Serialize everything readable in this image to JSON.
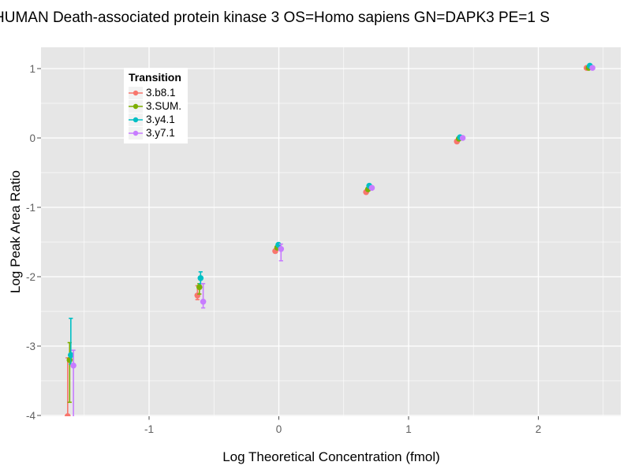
{
  "chart_data": {
    "type": "scatter",
    "title": "HUMAN Death-associated protein kinase 3 OS=Homo sapiens GN=DAPK3 PE=1 S",
    "xlabel": "Log Theoretical Concentration (fmol)",
    "ylabel": "Log Peak Area Ratio",
    "xlim": [
      -1.83,
      2.63
    ],
    "ylim": [
      -4.03,
      1.31
    ],
    "x_ticks": [
      -1,
      0,
      1,
      2
    ],
    "x_tick_labels": [
      "-1",
      "0",
      "1",
      "2"
    ],
    "y_ticks": [
      1,
      0,
      -1,
      -2,
      -3,
      -4
    ],
    "y_tick_labels": [
      "1",
      "0",
      "-1",
      "-2",
      "-3",
      "-4"
    ],
    "x_minor": [
      -1.5,
      -0.5,
      0.5,
      1.5,
      2.5
    ],
    "y_minor": [
      0.5,
      -0.5,
      -1.5,
      -2.5,
      -3.5
    ],
    "grid_on": true,
    "legend": {
      "title": "Transition",
      "position": "inside-top-left",
      "entries": [
        "3.b8.1",
        "3.SUM.",
        "3.y4.1",
        "3.y7.1"
      ]
    },
    "colors": {
      "panel_bg": "#E6E6E6",
      "grid_major": "#FFFFFF",
      "grid_minor": "#FFFFFF",
      "tick_text": "#606060",
      "tick_mark": "#4D4D4D",
      "legend_key_bg": "#F2F2F2"
    },
    "series": [
      {
        "name": "3.b8.1",
        "color": "#F8766D",
        "dodge": -4.5,
        "points": [
          {
            "x": -1.6,
            "y": -4.01,
            "hi": -3.17,
            "lo": -4.06
          },
          {
            "x": -0.6,
            "y": -2.27,
            "hi": -2.13,
            "lo": -2.33
          },
          {
            "x": 0.0,
            "y": -1.63
          },
          {
            "x": 0.7,
            "y": -0.78
          },
          {
            "x": 1.4,
            "y": -0.05
          },
          {
            "x": 2.4,
            "y": 1.01
          }
        ]
      },
      {
        "name": "3.SUM.",
        "color": "#7CAE00",
        "dodge": -2.0,
        "points": [
          {
            "x": -1.6,
            "y": -3.2,
            "hi": -2.95,
            "lo": -3.81
          },
          {
            "x": -0.6,
            "y": -2.15,
            "hi": -2.1,
            "lo": -2.25
          },
          {
            "x": 0.0,
            "y": -1.58
          },
          {
            "x": 0.7,
            "y": -0.74
          },
          {
            "x": 1.4,
            "y": -0.01
          },
          {
            "x": 2.4,
            "y": 1.01
          }
        ]
      },
      {
        "name": "3.y4.1",
        "color": "#00BFC4",
        "dodge": -0.5,
        "points": [
          {
            "x": -1.6,
            "y": -3.13,
            "hi": -2.6,
            "lo": -3.26
          },
          {
            "x": -0.6,
            "y": -2.02,
            "hi": -1.93,
            "lo": -2.1
          },
          {
            "x": 0.0,
            "y": -1.54
          },
          {
            "x": 0.7,
            "y": -0.69
          },
          {
            "x": 1.4,
            "y": 0.01
          },
          {
            "x": 2.4,
            "y": 1.04
          }
        ]
      },
      {
        "name": "3.y7.1",
        "color": "#C77CFF",
        "dodge": 2.8,
        "points": [
          {
            "x": -1.6,
            "y": -3.28,
            "hi": -3.06,
            "lo": -4.06
          },
          {
            "x": -0.6,
            "y": -2.36,
            "hi": -2.1,
            "lo": -2.45
          },
          {
            "x": 0.0,
            "y": -1.6,
            "hi": -1.53,
            "lo": -1.77
          },
          {
            "x": 0.7,
            "y": -0.72
          },
          {
            "x": 1.4,
            "y": 0.0
          },
          {
            "x": 2.4,
            "y": 1.01
          }
        ]
      }
    ]
  }
}
